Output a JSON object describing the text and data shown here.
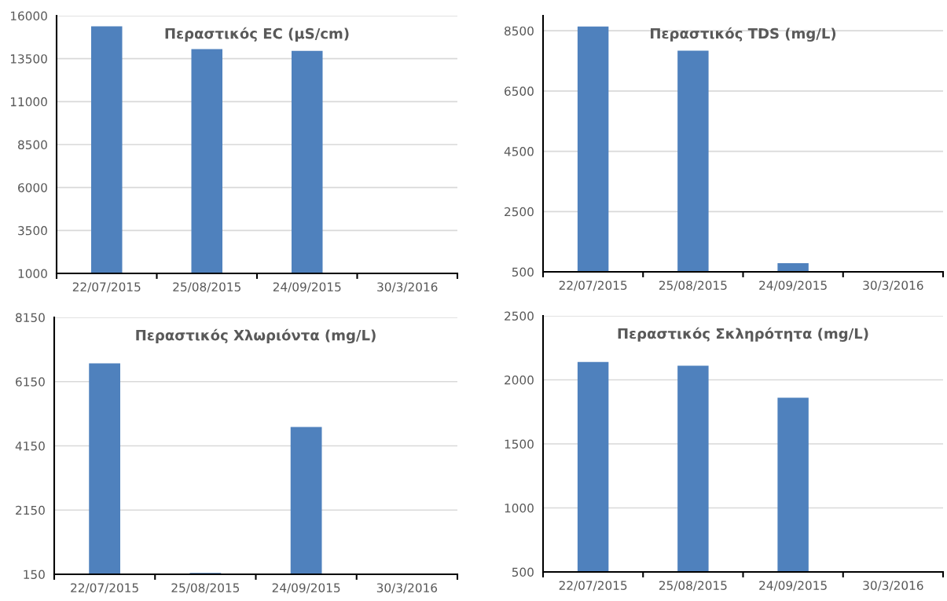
{
  "chart_data": [
    {
      "type": "bar",
      "title": "Περαστικός EC (μS/cm)",
      "categories": [
        "22/07/2015",
        "25/08/2015",
        "24/09/2015",
        "30/3/2016"
      ],
      "values": [
        15380,
        14060,
        13950,
        null
      ],
      "color": "#4f81bd",
      "ylim": [
        1000,
        16000
      ],
      "yticks": [
        1000,
        3500,
        6000,
        8500,
        11000,
        13500,
        16000
      ],
      "grid": "y"
    },
    {
      "type": "bar",
      "title": "Περαστικός TDS (mg/L)",
      "categories": [
        "22/07/2015",
        "25/08/2015",
        "24/09/2015",
        "30/3/2016"
      ],
      "values": [
        8640,
        7840,
        790,
        null
      ],
      "color": "#4f81bd",
      "ylim": [
        500,
        9000
      ],
      "yticks": [
        500,
        2500,
        4500,
        6500,
        8500
      ],
      "grid": "y"
    },
    {
      "type": "bar",
      "title": "Περαστικός Χλωριόντα (mg/L)",
      "categories": [
        "22/07/2015",
        "25/08/2015",
        "24/09/2015",
        "30/3/2016"
      ],
      "values": [
        6720,
        190,
        4740,
        null
      ],
      "color": "#4f81bd",
      "ylim": [
        150,
        8150
      ],
      "yticks": [
        150,
        2150,
        4150,
        6150,
        8150
      ],
      "grid": "y"
    },
    {
      "type": "bar",
      "title": "Περαστικός Σκληρότητα (mg/L)",
      "categories": [
        "22/07/2015",
        "25/08/2015",
        "24/09/2015",
        "30/3/2016"
      ],
      "values": [
        2140,
        2110,
        1860,
        null
      ],
      "color": "#4f81bd",
      "ylim": [
        500,
        2500
      ],
      "yticks": [
        500,
        1000,
        1500,
        2000,
        2500
      ],
      "grid": "y"
    }
  ]
}
